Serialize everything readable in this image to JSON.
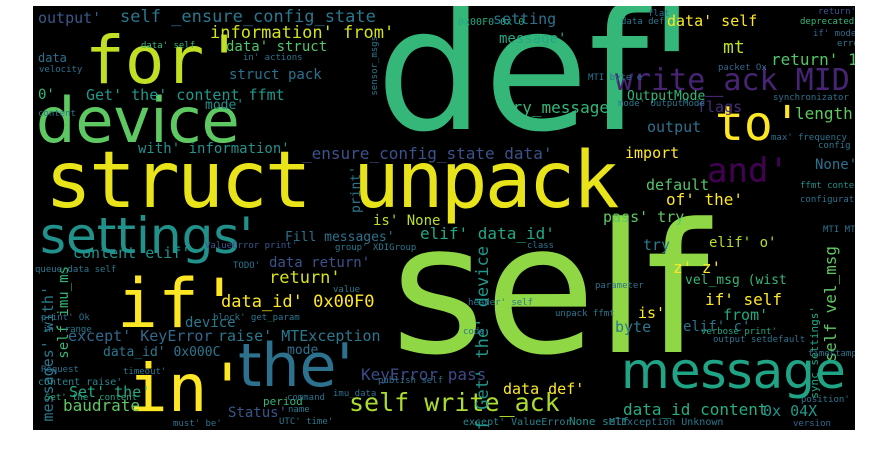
{
  "words": [
    {
      "text": "def'",
      "color": "#35b779"
    },
    {
      "text": "self",
      "color": "#8fd744"
    },
    {
      "text": "struct unpack",
      "color": "#e8e419"
    },
    {
      "text": "device",
      "color": "#5ec962"
    },
    {
      "text": "for'",
      "color": "#c2df23"
    },
    {
      "text": "settings'",
      "color": "#21918c"
    },
    {
      "text": "message",
      "color": "#20a486"
    },
    {
      "text": "in'",
      "color": "#fde725"
    },
    {
      "text": "the'",
      "color": "#2c728e"
    },
    {
      "text": "if'",
      "color": "#fde725"
    },
    {
      "text": "to'",
      "color": "#fde725"
    },
    {
      "text": "write_ack MID",
      "color": "#482475"
    },
    {
      "text": "and'",
      "color": "#440154"
    },
    {
      "text": "self write_ack",
      "color": "#addc30"
    },
    {
      "text": "information' from'",
      "color": "#d2e21b"
    },
    {
      "text": "self _ensure_config_state",
      "color": "#2a788e"
    },
    {
      "text": "_ensure_config_state data'",
      "color": "#3b528b"
    },
    {
      "text": "Get' the' content ffmt",
      "color": "#1f988b"
    },
    {
      "text": "data_id' 0x00F0",
      "color": "#fde725"
    },
    {
      "text": "data_id content",
      "color": "#26ad81"
    },
    {
      "text": "baudrate",
      "color": "#5ec962"
    },
    {
      "text": "KeyError pass",
      "color": "#3e4a89"
    },
    {
      "text": "except' KeyError",
      "color": "#31688e"
    },
    {
      "text": "raise' MTException",
      "color": "#2a788e"
    },
    {
      "text": "content elif'",
      "color": "#21918c"
    },
    {
      "text": "self vel_msg",
      "color": "#5ec962"
    },
    {
      "text": "output'",
      "color": "#38598c"
    },
    {
      "text": "setting",
      "color": "#2c728e"
    },
    {
      "text": "message'",
      "color": "#22a884"
    },
    {
      "text": "data' self",
      "color": "#fde725"
    },
    {
      "text": "mt",
      "color": "#bddf26"
    },
    {
      "text": "return' 1'",
      "color": "#52c569"
    },
    {
      "text": "flags",
      "color": "#472d7b"
    },
    {
      "text": "length",
      "color": "#5ec962"
    },
    {
      "text": "None'",
      "color": "#2c728e"
    },
    {
      "text": "try_message",
      "color": "#35b779"
    },
    {
      "text": "mode'",
      "color": "#21918c"
    },
    {
      "text": "output",
      "color": "#2c728e"
    },
    {
      "text": "import",
      "color": "#fde725"
    },
    {
      "text": "default",
      "color": "#52c569"
    },
    {
      "text": "of' the'",
      "color": "#fde725"
    },
    {
      "text": "pass' try",
      "color": "#5ec962"
    },
    {
      "text": "elif' data_id'",
      "color": "#22a884"
    },
    {
      "text": "Fill messages'",
      "color": "#2c728e"
    },
    {
      "text": "is' None",
      "color": "#bddf26"
    },
    {
      "text": "data return'",
      "color": "#3b528b"
    },
    {
      "text": "return'",
      "color": "#d8e219"
    },
    {
      "text": "elif' o'",
      "color": "#b5de2b"
    },
    {
      "text": "z' z'",
      "color": "#fde725"
    },
    {
      "text": "vel_msg (wist",
      "color": "#35b779"
    },
    {
      "text": "if' self",
      "color": "#fde725"
    },
    {
      "text": "from'",
      "color": "#22a884"
    },
    {
      "text": "elif' c'",
      "color": "#2c728e"
    },
    {
      "text": "byte",
      "color": "#2a788e"
    },
    {
      "text": "is'",
      "color": "#fde725"
    },
    {
      "text": "device",
      "color": "#2a788e"
    },
    {
      "text": "mode",
      "color": "#2c728e"
    },
    {
      "text": "data_id' 0x000C",
      "color": "#2a788e"
    },
    {
      "text": "data def'",
      "color": "#fde725"
    },
    {
      "text": "Set' the'",
      "color": "#22a884"
    },
    {
      "text": "Status'",
      "color": "#39568c"
    },
    {
      "text": "0x 04X",
      "color": "#1f988b"
    },
    {
      "text": "messages' with'",
      "color": "#2a788e"
    },
    {
      "text": "self imu_ms",
      "color": "#35b779"
    },
    {
      "text": "data' struct",
      "color": "#52c569"
    },
    {
      "text": "struct pack",
      "color": "#2c728e"
    },
    {
      "text": "OutputMode",
      "color": "#35b779"
    },
    {
      "text": "with' information'",
      "color": "#21918c"
    },
    {
      "text": "try",
      "color": "#2a788e"
    },
    {
      "text": "print'",
      "color": "#2a788e"
    },
    {
      "text": "self Get' the' device",
      "color": "#1f988b"
    },
    {
      "text": "0x00F0 0x'0",
      "color": "#22a884"
    },
    {
      "text": "0'",
      "color": "#35b779"
    },
    {
      "text": "content raise'",
      "color": "#25858e"
    },
    {
      "text": "except' ValueError",
      "color": "#25858e"
    },
    {
      "text": "None self",
      "color": "#21918c"
    },
    {
      "text": "MTException Unknown",
      "color": "#2a788e"
    },
    {
      "text": "sync_settings'",
      "color": "#22a884"
    },
    {
      "text": "timestamp'",
      "color": "#2c728e"
    },
    {
      "text": "ValueError print'",
      "color": "#38598c"
    },
    {
      "text": "queue_data self",
      "color": "#2a788e"
    },
    {
      "text": "synchronizator",
      "color": "#2c728e"
    },
    {
      "text": "max' frequency",
      "color": "#2c728e"
    },
    {
      "text": "config",
      "color": "#2a788e"
    },
    {
      "text": "return' o'",
      "color": "#3b528b"
    },
    {
      "text": "if' mode'",
      "color": "#31688e"
    },
    {
      "text": "deprecated'",
      "color": "#35b779"
    },
    {
      "text": "error",
      "color": "#2a788e"
    },
    {
      "text": "packet Ox",
      "color": "#31688e"
    },
    {
      "text": "ffmt content",
      "color": "#21918c"
    },
    {
      "text": "configuration",
      "color": "#2c728e"
    },
    {
      "text": "unpack ffmt",
      "color": "#2a788e"
    },
    {
      "text": "verbose print'",
      "color": "#22a884"
    },
    {
      "text": "output setdefault",
      "color": "#2c728e"
    },
    {
      "text": "position'",
      "color": "#2a788e"
    },
    {
      "text": "version",
      "color": "#31688e"
    },
    {
      "text": "code",
      "color": "#2a788e"
    },
    {
      "text": "parameter",
      "color": "#2c728e"
    },
    {
      "text": "timeout'",
      "color": "#2a788e"
    },
    {
      "text": "period",
      "color": "#35b779"
    },
    {
      "text": "command",
      "color": "#2c728e"
    },
    {
      "text": "name",
      "color": "#2a788e"
    },
    {
      "text": "UTC' time'",
      "color": "#2a788e"
    },
    {
      "text": "must' be'",
      "color": "#2c728e"
    },
    {
      "text": "Request",
      "color": "#2c728e"
    },
    {
      "text": "in' range",
      "color": "#2a788e"
    },
    {
      "text": "print' Ok",
      "color": "#2c728e"
    },
    {
      "text": "imu_data",
      "color": "#2c728e"
    },
    {
      "text": "publish self",
      "color": "#2c728e"
    },
    {
      "text": "in' actions",
      "color": "#2c728e"
    },
    {
      "text": "header' self",
      "color": "#2a788e"
    },
    {
      "text": "block' get_param",
      "color": "#2a788e"
    },
    {
      "text": "TODO'",
      "color": "#2c728e"
    },
    {
      "text": "value",
      "color": "#2a788e"
    },
    {
      "text": "class",
      "color": "#2c728e"
    },
    {
      "text": "group' XDIGroup",
      "color": "#2a788e"
    },
    {
      "text": "MTI byte e",
      "color": "#2c728e"
    },
    {
      "text": "mode' OutputMode",
      "color": "#2a788e"
    },
    {
      "text": "Set' the' content",
      "color": "#22a884"
    },
    {
      "text": "data' self",
      "color": "#35b779"
    },
    {
      "text": "velocity",
      "color": "#2c728e"
    },
    {
      "text": "content",
      "color": "#2a788e"
    },
    {
      "text": "data",
      "color": "#2c728e"
    },
    {
      "text": "sensor_msgs",
      "color": "#2a788e"
    },
    {
      "text": "MTI MTI",
      "color": "#2c728e"
    },
    {
      "text": "data def",
      "color": "#2a788e"
    },
    {
      "text": "flat",
      "color": "#2c728e"
    }
  ]
}
